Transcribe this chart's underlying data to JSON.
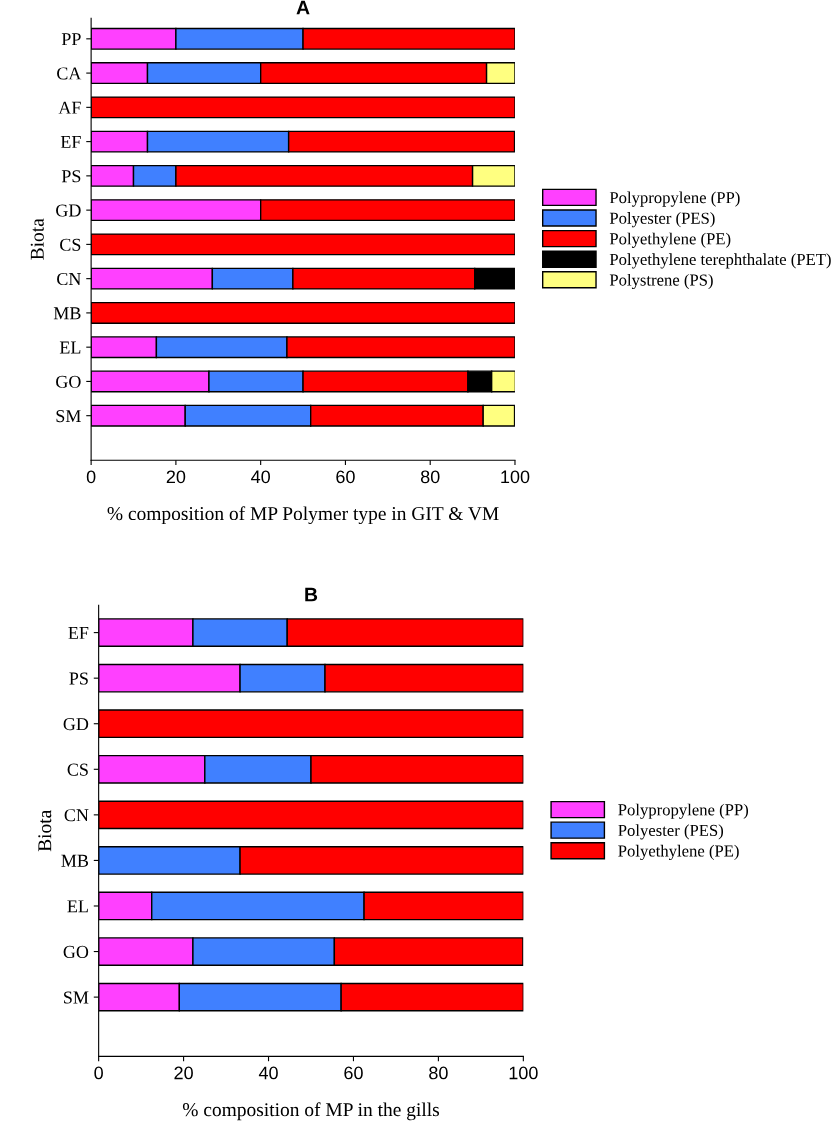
{
  "chart_data": [
    {
      "type": "bar",
      "orientation": "horizontal",
      "stacked": true,
      "title": "A",
      "xlabel": "% composition of MP Polymer type in GIT & VM",
      "ylabel": "Biota",
      "categories": [
        "PP",
        "CA",
        "AF",
        "EF",
        "PS",
        "GD",
        "CS",
        "CN",
        "MB",
        "EL",
        "GO",
        "SM"
      ],
      "series": [
        {
          "name": "Polypropylene (PP)",
          "color": "#ff40ff",
          "values": [
            20,
            13.3,
            0,
            13.3,
            10,
            40,
            0,
            28.6,
            0,
            15.4,
            27.8,
            22.2
          ]
        },
        {
          "name": "Polyester (PES)",
          "color": "#4080ff",
          "values": [
            30,
            26.7,
            0,
            33.3,
            10,
            0,
            0,
            19.0,
            0,
            30.8,
            22.2,
            29.6
          ]
        },
        {
          "name": "Polyethylene (PE)",
          "color": "#ff0000",
          "values": [
            50,
            53.3,
            100,
            53.3,
            70,
            60,
            100,
            42.9,
            100,
            53.8,
            38.9,
            40.7
          ]
        },
        {
          "name": "Polyethylene terephthalate (PET)",
          "color": "#000000",
          "values": [
            0,
            0,
            0,
            0,
            0,
            0,
            0,
            9.5,
            0,
            0,
            5.6,
            0
          ]
        },
        {
          "name": "Polystrene (PS)",
          "color": "#ffff80",
          "values": [
            0,
            6.7,
            0,
            0,
            10,
            0,
            0,
            0,
            0,
            0,
            5.6,
            7.4
          ]
        }
      ],
      "xlim": [
        0,
        100
      ],
      "xticks": [
        0,
        20,
        40,
        60,
        80,
        100
      ],
      "legend": "right",
      "grid": false
    },
    {
      "type": "bar",
      "orientation": "horizontal",
      "stacked": true,
      "title": "B",
      "xlabel": "% composition of MP in the gills",
      "ylabel": "Biota",
      "categories": [
        "EF",
        "PS",
        "GD",
        "CS",
        "CN",
        "MB",
        "EL",
        "GO",
        "SM"
      ],
      "series": [
        {
          "name": "Polypropylene (PP)",
          "color": "#ff40ff",
          "values": [
            22.2,
            33.3,
            0,
            25,
            0,
            0,
            12.5,
            22.2,
            19.0
          ]
        },
        {
          "name": "Polyester (PES)",
          "color": "#4080ff",
          "values": [
            22.2,
            20,
            0,
            25,
            0,
            33.3,
            50,
            33.3,
            38.1
          ]
        },
        {
          "name": "Polyethylene (PE)",
          "color": "#ff0000",
          "values": [
            55.6,
            46.7,
            100,
            50,
            100,
            66.7,
            37.5,
            44.4,
            42.9
          ]
        }
      ],
      "xlim": [
        0,
        100
      ],
      "xticks": [
        0,
        20,
        40,
        60,
        80,
        100
      ],
      "legend": "right",
      "grid": false
    }
  ]
}
